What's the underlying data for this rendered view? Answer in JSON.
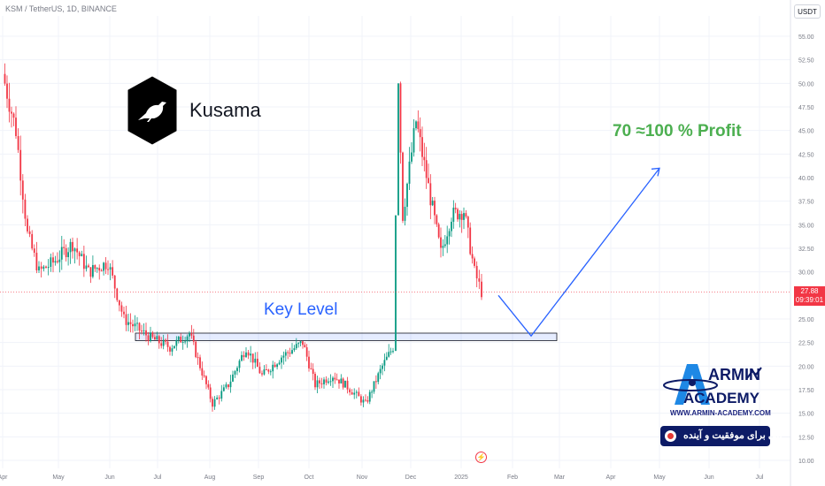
{
  "header": {
    "pair_label": "KSM / TetherUS, 1D, BINANCE",
    "currency": "USDT"
  },
  "last_price": {
    "value": "27.88",
    "countdown": "09:39:01"
  },
  "annotations": {
    "brand_name": "Kusama",
    "key_level_label": "Key Level",
    "profit_label": "70 ≈100 % Profit"
  },
  "watermark": {
    "name_top": "ARMIN",
    "name_bottom": "ACADEMY",
    "website": "WWW.ARMIN-ACADEMY.COM",
    "slogan": "پلی برای موفقیت و آینده"
  },
  "icons": {
    "flash": "lightning-icon",
    "logo": "kusama-bird-logo",
    "target": "target-icon"
  },
  "colors": {
    "up": "#089981",
    "down": "#f23645",
    "annotation": "#2962ff",
    "profit": "#4caf50",
    "brand_navy": "#0d1b66"
  },
  "chart_data": {
    "type": "candlestick",
    "title": "",
    "xlabel": "",
    "ylabel": "",
    "ylim": [
      10,
      56
    ],
    "y_ticks": [
      "55.00",
      "52.50",
      "50.00",
      "47.50",
      "45.00",
      "42.50",
      "40.00",
      "37.50",
      "35.00",
      "32.50",
      "30.00",
      "25.00",
      "22.50",
      "20.00",
      "17.50",
      "15.00",
      "12.50",
      "10.00"
    ],
    "x_ticks": [
      "Apr",
      "May",
      "Jun",
      "Jul",
      "Aug",
      "Sep",
      "Oct",
      "Nov",
      "Dec",
      "2025",
      "Feb",
      "Mar",
      "Apr",
      "May",
      "Jun",
      "Jul"
    ],
    "last_price": 27.88,
    "series": [
      {
        "anchors": [
          {
            "label": "Apr",
            "close": 51.0
          },
          {
            "label": "",
            "close": 45.0
          },
          {
            "label": "",
            "close": 34.0
          },
          {
            "label": "May",
            "close": 30.0
          },
          {
            "label": "",
            "close": 31.0
          },
          {
            "label": "",
            "close": 33.0
          },
          {
            "label": "Jun",
            "close": 30.0
          },
          {
            "label": "",
            "close": 31.0
          },
          {
            "label": "",
            "close": 25.0
          },
          {
            "label": "Jul",
            "close": 23.0
          },
          {
            "label": "",
            "close": 22.0
          },
          {
            "label": "",
            "close": 23.5
          },
          {
            "label": "",
            "close": 20.0
          },
          {
            "label": "Aug",
            "close": 16.0
          },
          {
            "label": "",
            "close": 18.0
          },
          {
            "label": "",
            "close": 22.0
          },
          {
            "label": "Sep",
            "close": 19.0
          },
          {
            "label": "",
            "close": 21.0
          },
          {
            "label": "",
            "close": 22.5
          },
          {
            "label": "Oct",
            "close": 18.0
          },
          {
            "label": "",
            "close": 19.0
          },
          {
            "label": "",
            "close": 18.0
          },
          {
            "label": "Nov",
            "close": 16.0
          },
          {
            "label": "",
            "close": 20.0
          },
          {
            "label": "",
            "close": 22.0
          },
          {
            "label": "",
            "close": 50.0
          },
          {
            "label": "",
            "close": 36.0
          },
          {
            "label": "Dec",
            "close": 46.0
          },
          {
            "label": "",
            "close": 39.0
          },
          {
            "label": "",
            "close": 32.0
          },
          {
            "label": "",
            "close": 36.0
          },
          {
            "label": "2025",
            "close": 36.5
          },
          {
            "label": "",
            "close": 30.0
          },
          {
            "label": "",
            "close": 27.88
          }
        ]
      }
    ],
    "key_level_zone": [
      22.7,
      23.5
    ],
    "projection": [
      {
        "label": "2025",
        "value": 27.5
      },
      {
        "label": "Feb",
        "value": 23.2
      },
      {
        "label": "May",
        "value": 41.0
      }
    ]
  }
}
